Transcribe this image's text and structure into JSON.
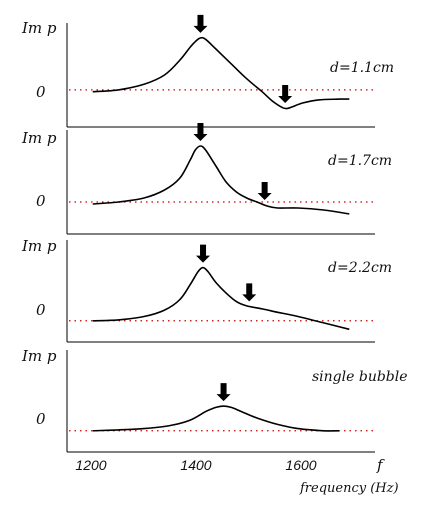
{
  "chart_data": {
    "type": "line",
    "xlabel_symbol": "f",
    "xlabel": "frequency (Hz)",
    "x_ticks": [
      1200,
      1400,
      1600
    ],
    "xlim": [
      1150,
      1750
    ],
    "panels": [
      {
        "ylabel": "Im p",
        "zero_label": "0",
        "annotation": "d=1.1cm",
        "ylim": [
          -1.0,
          1.8
        ],
        "series": {
          "x": [
            1200,
            1250,
            1300,
            1340,
            1370,
            1390,
            1400,
            1410,
            1420,
            1440,
            1470,
            1500,
            1530,
            1550,
            1570,
            1580,
            1590,
            1610,
            1640,
            1680,
            1700
          ],
          "y": [
            -0.05,
            0.0,
            0.15,
            0.4,
            0.8,
            1.15,
            1.3,
            1.4,
            1.36,
            1.1,
            0.7,
            0.3,
            -0.05,
            -0.3,
            -0.48,
            -0.5,
            -0.45,
            -0.35,
            -0.27,
            -0.25,
            -0.25
          ]
        },
        "arrows_x": [
          1410,
          1575
        ]
      },
      {
        "ylabel": "Im p",
        "zero_label": "0",
        "annotation": "d=1.7cm",
        "ylim": [
          -0.8,
          1.8
        ],
        "series": {
          "x": [
            1200,
            1250,
            1300,
            1340,
            1370,
            1390,
            1400,
            1410,
            1420,
            1440,
            1460,
            1480,
            1500,
            1520,
            1540,
            1560,
            1600,
            1650,
            1700
          ],
          "y": [
            -0.05,
            0.0,
            0.1,
            0.3,
            0.6,
            1.05,
            1.3,
            1.4,
            1.3,
            0.9,
            0.5,
            0.25,
            0.1,
            0.0,
            -0.1,
            -0.15,
            -0.15,
            -0.2,
            -0.3
          ]
        },
        "arrows_x": [
          1410,
          1535
        ]
      },
      {
        "ylabel": "Im p",
        "zero_label": "0",
        "annotation": "d=2.2cm",
        "ylim": [
          -0.5,
          1.9
        ],
        "series": {
          "x": [
            1200,
            1250,
            1300,
            1340,
            1370,
            1390,
            1405,
            1415,
            1425,
            1440,
            1460,
            1480,
            1500,
            1530,
            1560,
            1600,
            1650,
            1700
          ],
          "y": [
            0.0,
            0.02,
            0.1,
            0.25,
            0.5,
            0.85,
            1.15,
            1.25,
            1.15,
            0.9,
            0.65,
            0.45,
            0.35,
            0.28,
            0.2,
            0.1,
            -0.05,
            -0.2
          ]
        },
        "arrows_x": [
          1415,
          1505
        ]
      },
      {
        "ylabel": "Im p",
        "zero_label": "0",
        "annotation": "single bubble",
        "ylim": [
          -0.5,
          1.9
        ],
        "series": {
          "x": [
            1200,
            1250,
            1300,
            1350,
            1390,
            1420,
            1440,
            1455,
            1470,
            1490,
            1520,
            1560,
            1600,
            1650,
            1680
          ],
          "y": [
            0.0,
            0.02,
            0.05,
            0.12,
            0.25,
            0.45,
            0.55,
            0.58,
            0.55,
            0.45,
            0.3,
            0.15,
            0.05,
            0.0,
            0.0
          ]
        },
        "arrows_x": [
          1455
        ]
      }
    ]
  }
}
